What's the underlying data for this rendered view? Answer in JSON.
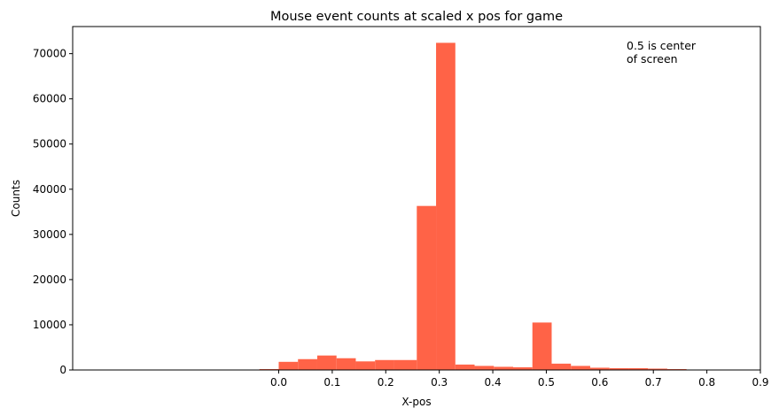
{
  "chart_data": {
    "type": "bar",
    "title": "Mouse event counts at scaled x pos for game",
    "xlabel": "X-pos",
    "ylabel": "Counts",
    "xlim": [
      -0.385,
      0.9
    ],
    "ylim": [
      0,
      76000
    ],
    "x_ticks": [
      0.0,
      0.1,
      0.2,
      0.3,
      0.4,
      0.5,
      0.6,
      0.7,
      0.8,
      0.9
    ],
    "x_tick_labels": [
      "0.0",
      "0.1",
      "0.2",
      "0.3",
      "0.4",
      "0.5",
      "0.6",
      "0.7",
      "0.8",
      "0.9"
    ],
    "y_ticks": [
      0,
      10000,
      20000,
      30000,
      40000,
      50000,
      60000,
      70000
    ],
    "y_tick_labels": [
      "0",
      "10000",
      "20000",
      "30000",
      "40000",
      "50000",
      "60000",
      "70000"
    ],
    "annotation": [
      "0.5 is center",
      "of screen"
    ],
    "color": "#ff6347",
    "grid": false,
    "bins": [
      {
        "x0": -0.036,
        "x1": 0.0,
        "value": 200
      },
      {
        "x0": 0.0,
        "x1": 0.036,
        "value": 1800
      },
      {
        "x0": 0.036,
        "x1": 0.072,
        "value": 2400
      },
      {
        "x0": 0.072,
        "x1": 0.108,
        "value": 3200
      },
      {
        "x0": 0.108,
        "x1": 0.144,
        "value": 2600
      },
      {
        "x0": 0.144,
        "x1": 0.18,
        "value": 1900
      },
      {
        "x0": 0.18,
        "x1": 0.216,
        "value": 2200
      },
      {
        "x0": 0.216,
        "x1": 0.258,
        "value": 2200
      },
      {
        "x0": 0.258,
        "x1": 0.294,
        "value": 36300
      },
      {
        "x0": 0.294,
        "x1": 0.33,
        "value": 72400
      },
      {
        "x0": 0.33,
        "x1": 0.366,
        "value": 1200
      },
      {
        "x0": 0.366,
        "x1": 0.402,
        "value": 900
      },
      {
        "x0": 0.402,
        "x1": 0.438,
        "value": 700
      },
      {
        "x0": 0.438,
        "x1": 0.474,
        "value": 600
      },
      {
        "x0": 0.474,
        "x1": 0.51,
        "value": 10500
      },
      {
        "x0": 0.51,
        "x1": 0.546,
        "value": 1400
      },
      {
        "x0": 0.546,
        "x1": 0.582,
        "value": 900
      },
      {
        "x0": 0.582,
        "x1": 0.618,
        "value": 500
      },
      {
        "x0": 0.618,
        "x1": 0.654,
        "value": 400
      },
      {
        "x0": 0.654,
        "x1": 0.69,
        "value": 400
      },
      {
        "x0": 0.69,
        "x1": 0.726,
        "value": 300
      },
      {
        "x0": 0.726,
        "x1": 0.762,
        "value": 200
      }
    ]
  }
}
